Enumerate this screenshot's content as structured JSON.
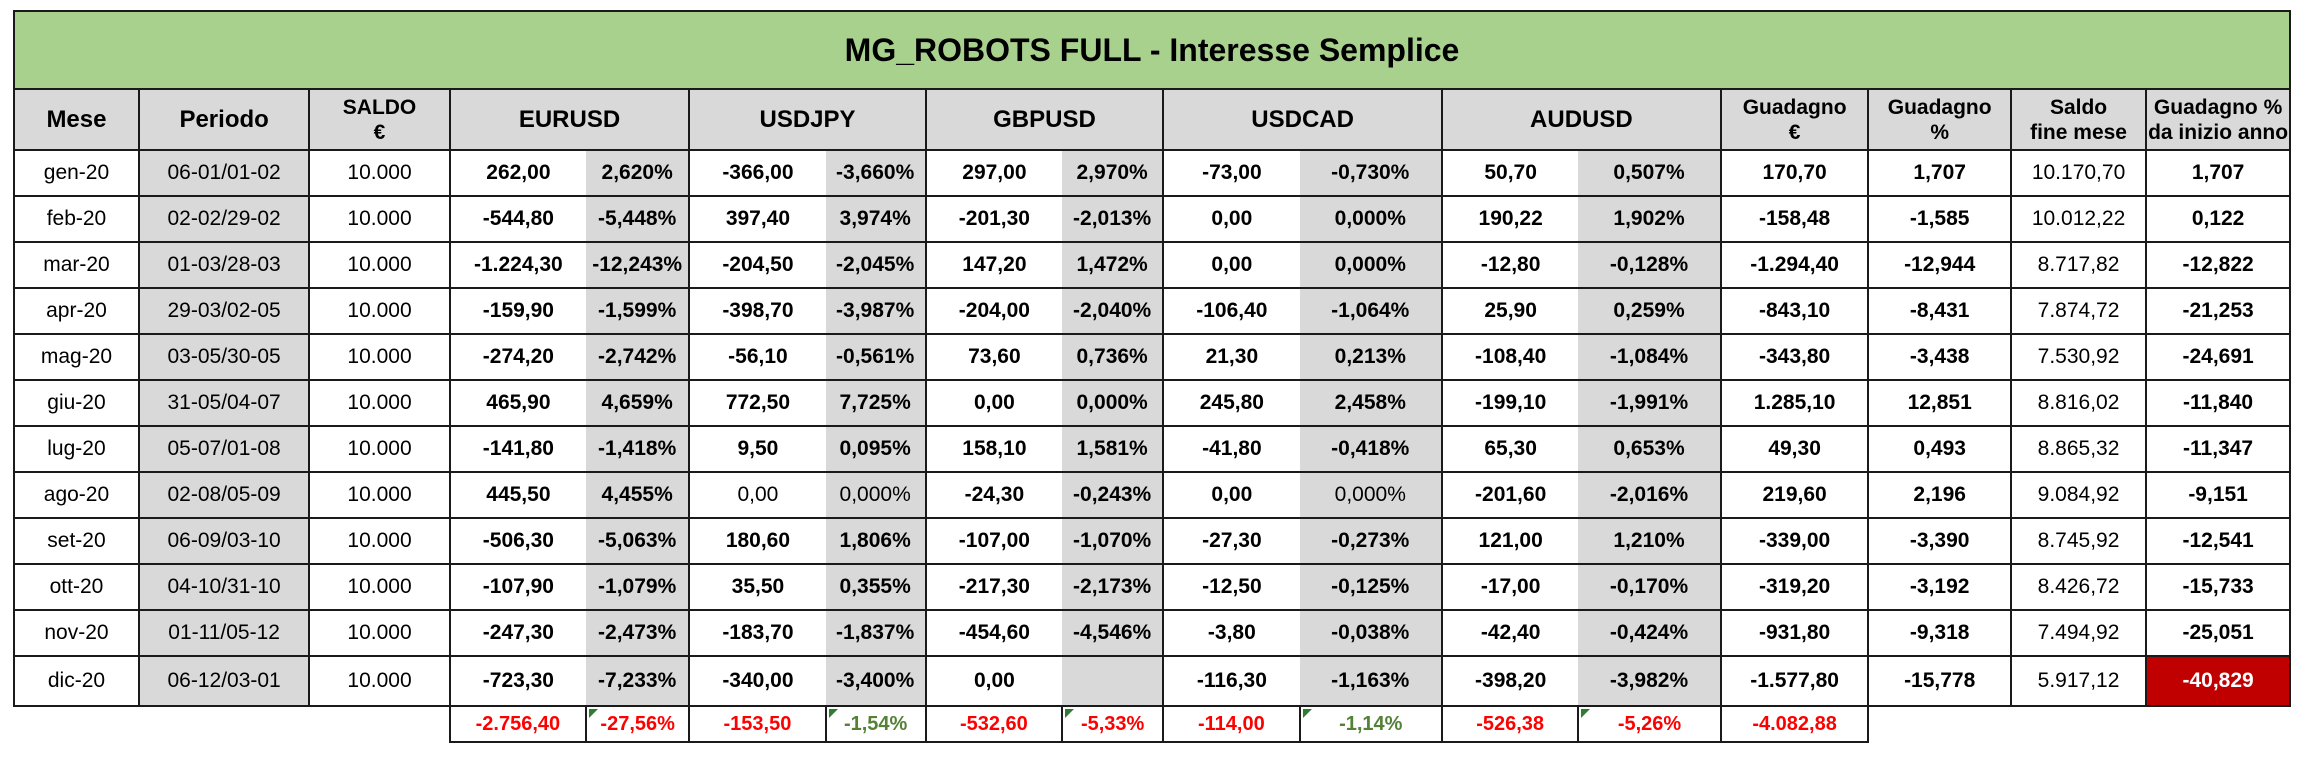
{
  "title": "MG_ROBOTS FULL - Interesse Semplice",
  "headers": {
    "mese": "Mese",
    "periodo": "Periodo",
    "saldo_line1": "SALDO",
    "saldo_line2": "€",
    "pairs": [
      "EURUSD",
      "USDJPY",
      "GBPUSD",
      "USDCAD",
      "AUDUSD"
    ],
    "guadagno_eur_line1": "Guadagno",
    "guadagno_eur_line2": "€",
    "guadagno_pct_line1": "Guadagno",
    "guadagno_pct_line2": "%",
    "saldo_fine_line1": "Saldo",
    "saldo_fine_line2": "fine mese",
    "ytd_line1": "Guadagno %",
    "ytd_line2": "da inizio anno"
  },
  "rows": [
    {
      "mese": "gen-20",
      "periodo": "06-01/01-02",
      "saldo": "10.000",
      "pairs": [
        [
          "262,00",
          "2,620%"
        ],
        [
          "-366,00",
          "-3,660%"
        ],
        [
          "297,00",
          "2,970%"
        ],
        [
          "-73,00",
          "-0,730%"
        ],
        [
          "50,70",
          "0,507%"
        ]
      ],
      "guadagno_eur": "170,70",
      "guadagno_pct": "1,707",
      "saldo_fine": "10.170,70",
      "ytd": "1,707"
    },
    {
      "mese": "feb-20",
      "periodo": "02-02/29-02",
      "saldo": "10.000",
      "pairs": [
        [
          "-544,80",
          "-5,448%"
        ],
        [
          "397,40",
          "3,974%"
        ],
        [
          "-201,30",
          "-2,013%"
        ],
        [
          "0,00",
          "0,000%"
        ],
        [
          "190,22",
          "1,902%"
        ]
      ],
      "guadagno_eur": "-158,48",
      "guadagno_pct": "-1,585",
      "saldo_fine": "10.012,22",
      "ytd": "0,122"
    },
    {
      "mese": "mar-20",
      "periodo": "01-03/28-03",
      "saldo": "10.000",
      "pairs": [
        [
          "-1.224,30",
          "-12,243%"
        ],
        [
          "-204,50",
          "-2,045%"
        ],
        [
          "147,20",
          "1,472%"
        ],
        [
          "0,00",
          "0,000%"
        ],
        [
          "-12,80",
          "-0,128%"
        ]
      ],
      "guadagno_eur": "-1.294,40",
      "guadagno_pct": "-12,944",
      "saldo_fine": "8.717,82",
      "ytd": "-12,822"
    },
    {
      "mese": "apr-20",
      "periodo": "29-03/02-05",
      "saldo": "10.000",
      "pairs": [
        [
          "-159,90",
          "-1,599%"
        ],
        [
          "-398,70",
          "-3,987%"
        ],
        [
          "-204,00",
          "-2,040%"
        ],
        [
          "-106,40",
          "-1,064%"
        ],
        [
          "25,90",
          "0,259%"
        ]
      ],
      "guadagno_eur": "-843,10",
      "guadagno_pct": "-8,431",
      "saldo_fine": "7.874,72",
      "ytd": "-21,253"
    },
    {
      "mese": "mag-20",
      "periodo": "03-05/30-05",
      "saldo": "10.000",
      "pairs": [
        [
          "-274,20",
          "-2,742%"
        ],
        [
          "-56,10",
          "-0,561%"
        ],
        [
          "73,60",
          "0,736%"
        ],
        [
          "21,30",
          "0,213%"
        ],
        [
          "-108,40",
          "-1,084%"
        ]
      ],
      "guadagno_eur": "-343,80",
      "guadagno_pct": "-3,438",
      "saldo_fine": "7.530,92",
      "ytd": "-24,691"
    },
    {
      "mese": "giu-20",
      "periodo": "31-05/04-07",
      "saldo": "10.000",
      "pairs": [
        [
          "465,90",
          "4,659%"
        ],
        [
          "772,50",
          "7,725%"
        ],
        [
          "0,00",
          "0,000%"
        ],
        [
          "245,80",
          "2,458%"
        ],
        [
          "-199,10",
          "-1,991%"
        ]
      ],
      "guadagno_eur": "1.285,10",
      "guadagno_pct": "12,851",
      "saldo_fine": "8.816,02",
      "ytd": "-11,840"
    },
    {
      "mese": "lug-20",
      "periodo": "05-07/01-08",
      "saldo": "10.000",
      "pairs": [
        [
          "-141,80",
          "-1,418%"
        ],
        [
          "9,50",
          "0,095%"
        ],
        [
          "158,10",
          "1,581%"
        ],
        [
          "-41,80",
          "-0,418%"
        ],
        [
          "65,30",
          "0,653%"
        ]
      ],
      "guadagno_eur": "49,30",
      "guadagno_pct": "0,493",
      "saldo_fine": "8.865,32",
      "ytd": "-11,347"
    },
    {
      "mese": "ago-20",
      "periodo": "02-08/05-09",
      "saldo": "10.000",
      "pairs": [
        [
          "445,50",
          "4,455%"
        ],
        [
          "0,00",
          "0,000%"
        ],
        [
          "-24,30",
          "-0,243%"
        ],
        [
          "0,00",
          "0,000%"
        ],
        [
          "-201,60",
          "-2,016%"
        ]
      ],
      "guadagno_eur": "219,60",
      "guadagno_pct": "2,196",
      "saldo_fine": "9.084,92",
      "ytd": "-9,151"
    },
    {
      "mese": "set-20",
      "periodo": "06-09/03-10",
      "saldo": "10.000",
      "pairs": [
        [
          "-506,30",
          "-5,063%"
        ],
        [
          "180,60",
          "1,806%"
        ],
        [
          "-107,00",
          "-1,070%"
        ],
        [
          "-27,30",
          "-0,273%"
        ],
        [
          "121,00",
          "1,210%"
        ]
      ],
      "guadagno_eur": "-339,00",
      "guadagno_pct": "-3,390",
      "saldo_fine": "8.745,92",
      "ytd": "-12,541"
    },
    {
      "mese": "ott-20",
      "periodo": "04-10/31-10",
      "saldo": "10.000",
      "pairs": [
        [
          "-107,90",
          "-1,079%"
        ],
        [
          "35,50",
          "0,355%"
        ],
        [
          "-217,30",
          "-2,173%"
        ],
        [
          "-12,50",
          "-0,125%"
        ],
        [
          "-17,00",
          "-0,170%"
        ]
      ],
      "guadagno_eur": "-319,20",
      "guadagno_pct": "-3,192",
      "saldo_fine": "8.426,72",
      "ytd": "-15,733"
    },
    {
      "mese": "nov-20",
      "periodo": "01-11/05-12",
      "saldo": "10.000",
      "pairs": [
        [
          "-247,30",
          "-2,473%"
        ],
        [
          "-183,70",
          "-1,837%"
        ],
        [
          "-454,60",
          "-4,546%"
        ],
        [
          "-3,80",
          "-0,038%"
        ],
        [
          "-42,40",
          "-0,424%"
        ]
      ],
      "guadagno_eur": "-931,80",
      "guadagno_pct": "-9,318",
      "saldo_fine": "7.494,92",
      "ytd": "-25,051"
    },
    {
      "mese": "dic-20",
      "periodo": "06-12/03-01",
      "saldo": "10.000",
      "pairs": [
        [
          "-723,30",
          "-7,233%"
        ],
        [
          "-340,00",
          "-3,400%"
        ],
        [
          "0,00",
          ""
        ],
        [
          "-116,30",
          "-1,163%"
        ],
        [
          "-398,20",
          "-3,982%"
        ]
      ],
      "guadagno_eur": "-1.577,80",
      "guadagno_pct": "-15,778",
      "saldo_fine": "5.917,12",
      "ytd": "-40,829"
    }
  ],
  "totals": {
    "pairs": [
      [
        "-2.756,40",
        "-27,56%"
      ],
      [
        "-153,50",
        "-1,54%"
      ],
      [
        "-532,60",
        "-5,33%"
      ],
      [
        "-114,00",
        "-1,14%"
      ],
      [
        "-526,38",
        "-5,26%"
      ]
    ],
    "guadagno_eur": "-4.082,88"
  },
  "colors": {
    "title_bg": "#a9d18e",
    "header_bg": "#d9d9d9",
    "positive": "#538135",
    "negative": "#ff0000",
    "highlight_bg": "#c00000"
  }
}
